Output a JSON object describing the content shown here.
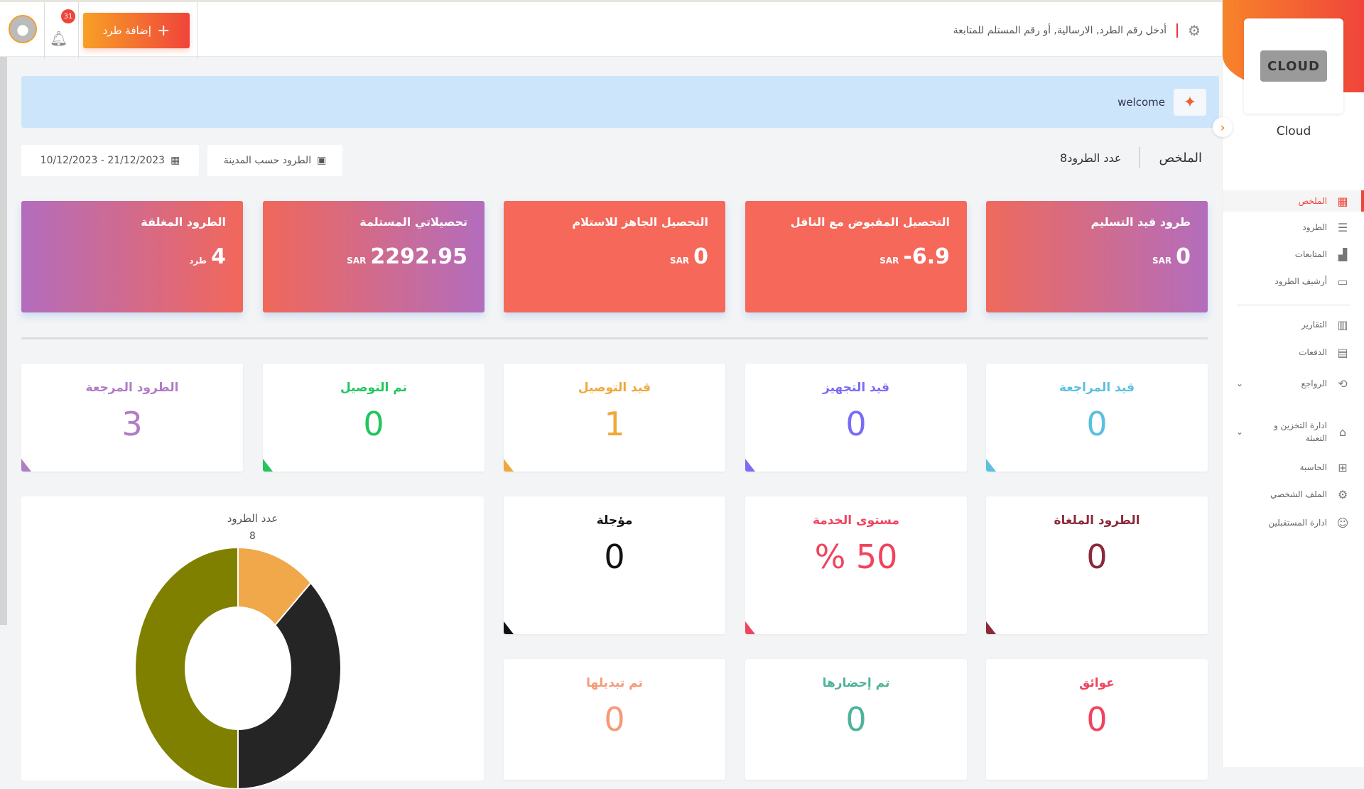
{
  "topbar": {
    "search_placeholder": "أدخل رقم الطرد, الارسالية, أو رقم المستلم للمتابعة",
    "add_parcel": "إضافة طرد",
    "notifications_count": "31"
  },
  "banner": {
    "text": "welcome"
  },
  "tabs": {
    "summary": "الملخص",
    "count": "عدد الطرود8"
  },
  "filters": {
    "by_city": "الطرود حسب المدينة",
    "date_range": "21/12/2023 - 10/12/2023"
  },
  "color_cards": [
    {
      "title": "طرود قيد التسليم",
      "value": "0",
      "unit": "SAR"
    },
    {
      "title": "التحصيل المقبوض مع الناقل",
      "value": "6.9-",
      "unit": "SAR"
    },
    {
      "title": "التحصيل الجاهز للاستلام",
      "value": "0",
      "unit": "SAR"
    },
    {
      "title": "تحصيلاتي المستلمة",
      "value": "2292.95",
      "unit": "SAR"
    },
    {
      "title": "الطرود المغلقة",
      "value": "4",
      "unit": "طرد"
    }
  ],
  "status_cards": [
    {
      "title": "قيد المراجعة",
      "value": "0",
      "color": "#5bc0de"
    },
    {
      "title": "قيد التجهيز",
      "value": "0",
      "color": "#7b6cf6"
    },
    {
      "title": "قيد التوصيل",
      "value": "1",
      "color": "#f0a83a"
    },
    {
      "title": "تم التوصيل",
      "value": "0",
      "color": "#22c55e"
    },
    {
      "title": "الطرود المرجعة",
      "value": "3",
      "color": "#b07cc6"
    }
  ],
  "metric_cards": [
    {
      "title": "الطرود الملغاة",
      "value": "0",
      "color": "#8b2a3a"
    },
    {
      "title": "مستوى الخدمة",
      "value": "% 50",
      "color": "#f0445e"
    },
    {
      "title": "مؤجلة",
      "value": "0",
      "color": "#111111"
    },
    {
      "title": "عوائق",
      "value": "0",
      "color": "#f0445e"
    },
    {
      "title": "تم إحضارها",
      "value": "0",
      "color": "#4fb39a"
    },
    {
      "title": "تم تبديلها",
      "value": "0",
      "color": "#f59a7a"
    }
  ],
  "chart_data": {
    "type": "pie",
    "donut": true,
    "title": "عدد الطرود",
    "total": "8",
    "values": [
      1,
      3,
      4
    ],
    "colors": [
      "#f0a84a",
      "#252525",
      "#808000"
    ]
  },
  "sidebar": {
    "company": "Cloud",
    "logo_text": "CLOUD",
    "items": [
      {
        "label": "الملخص",
        "icon": "grid-icon",
        "active": true
      },
      {
        "label": "الطرود",
        "icon": "rows-icon"
      },
      {
        "label": "المتابعات",
        "icon": "boxes-icon"
      },
      {
        "label": "أرشيف الطرود",
        "icon": "archive-icon"
      },
      {
        "label": "التقارير",
        "icon": "bar-chart-icon"
      },
      {
        "label": "الدفعات",
        "icon": "payments-icon"
      },
      {
        "label": "الرواجع",
        "icon": "returns-icon",
        "expandable": true
      },
      {
        "label": "ادارة التخزين و التعبئة",
        "icon": "warehouse-icon",
        "expandable": true
      },
      {
        "label": "الحاسبة",
        "icon": "calculator-icon"
      },
      {
        "label": "الملف الشخصي",
        "icon": "gear-icon"
      },
      {
        "label": "ادارة المستقبلين",
        "icon": "users-icon"
      }
    ]
  }
}
